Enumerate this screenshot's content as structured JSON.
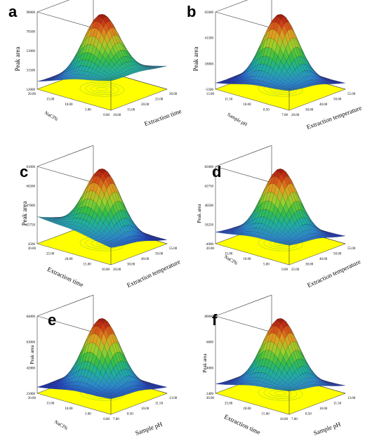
{
  "figure": {
    "colors": {
      "floor": "#ffff00",
      "contour": "#90c830",
      "edge": "#1a1a1a"
    },
    "colormap": [
      "#10208a",
      "#1d38c8",
      "#2a8ad0",
      "#20b0a0",
      "#36bf45",
      "#9ad12b",
      "#e0a020",
      "#d24018",
      "#8a0a0a"
    ]
  },
  "chart_data": [
    {
      "type": "surface",
      "panel": "a",
      "zlabel": "Peak area",
      "xlabel": "Extraction time",
      "ylabel": "NaCl%",
      "z_ticks": [
        "90000",
        "70500",
        "51000",
        "31500",
        "12000"
      ],
      "x_ticks": [
        "10.00",
        "15.00",
        "20.00",
        "25.00",
        "30.00"
      ],
      "y_ticks": [
        "0.00",
        "5.00",
        "10.00",
        "15.00",
        "20.00"
      ],
      "surface": {
        "corners": [
          0.38,
          0.3,
          0.0,
          0.1
        ],
        "peak": 0.97
      }
    },
    {
      "type": "surface",
      "panel": "b",
      "zlabel": "Peak area",
      "xlabel": "Extraction temperature",
      "ylabel": "Sample pH",
      "z_ticks": [
        "65000",
        "41500",
        "18000",
        "-5500"
      ],
      "x_ticks": [
        "20.00",
        "30.00",
        "40.00",
        "50.00",
        "55.00"
      ],
      "y_ticks": [
        "7.00",
        "8.50",
        "10.00",
        "11.50",
        "13.00"
      ],
      "surface": {
        "corners": [
          0.25,
          0.08,
          0.0,
          0.08
        ],
        "peak": 0.97
      }
    },
    {
      "type": "surface",
      "panel": "c",
      "zlabel": "Peak area",
      "xlabel": "Extraction temperature",
      "ylabel": "Extraction time",
      "z_ticks": [
        "81000",
        "60200",
        "47000",
        "25750",
        "4500"
      ],
      "x_ticks": [
        "20.00",
        "30.00",
        "40.00",
        "50.00",
        "55.00"
      ],
      "y_ticks": [
        "10.00",
        "15.00",
        "20.00",
        "25.00",
        "30.00"
      ],
      "surface": {
        "corners": [
          0.22,
          0.05,
          0.0,
          0.35
        ],
        "peak": 0.97
      }
    },
    {
      "type": "surface",
      "panel": "d",
      "zlabel": "Peak area",
      "xlabel": "Extraction temperature",
      "ylabel": "NaCl%",
      "z_ticks": [
        "85000",
        "62750",
        "40500",
        "18250",
        "-4000"
      ],
      "x_ticks": [
        "25.00",
        "30.00",
        "40.00",
        "50.00",
        "55.00"
      ],
      "y_ticks": [
        "0.00",
        "5.00",
        "10.00",
        "15.00",
        "20.00"
      ],
      "surface": {
        "corners": [
          0.25,
          0.1,
          0.0,
          0.15
        ],
        "peak": 0.97
      }
    },
    {
      "type": "surface",
      "panel": "e",
      "zlabel": "Peak area",
      "xlabel": "Sample pH",
      "ylabel": "NaCl%",
      "z_ticks": [
        "84000",
        "63000",
        "42000",
        "21000"
      ],
      "x_ticks": [
        "7.00",
        "8.50",
        "10.00",
        "11.50",
        "13.00"
      ],
      "y_ticks": [
        "0.00",
        "5.00",
        "10.00",
        "15.00",
        "20.00"
      ],
      "surface": {
        "corners": [
          0.2,
          0.08,
          0.0,
          0.08
        ],
        "peak": 0.97
      }
    },
    {
      "type": "surface",
      "panel": "f",
      "zlabel": "Peak area",
      "xlabel": "Sample pH",
      "ylabel": "Extraction time",
      "z_ticks": [
        "80000",
        "6000",
        "4000",
        "2400"
      ],
      "x_ticks": [
        "7.00",
        "8.50",
        "10.00",
        "11.50",
        "13.00"
      ],
      "y_ticks": [
        "10.00",
        "15.00",
        "20.00",
        "25.00",
        "30.00"
      ],
      "surface": {
        "corners": [
          0.3,
          0.1,
          0.0,
          0.12
        ],
        "peak": 0.97
      }
    }
  ]
}
